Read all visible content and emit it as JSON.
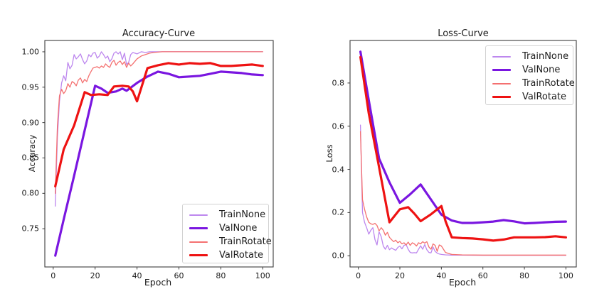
{
  "figure": {
    "background": "#ffffff",
    "spine_color": "#3c3c3c",
    "text_color": "#1c1c1c"
  },
  "chart_data": [
    {
      "type": "line",
      "title": "Accuracy-Curve",
      "xlabel": "Epoch",
      "ylabel": "Accuracy",
      "xlim": [
        -4,
        105
      ],
      "ylim": [
        0.696,
        1.016
      ],
      "grid": false,
      "legend_position": "lower right",
      "xticks": [
        0,
        20,
        40,
        60,
        80,
        100
      ],
      "xtick_labels": [
        "0",
        "20",
        "40",
        "60",
        "80",
        "100"
      ],
      "yticks": [
        0.75,
        0.8,
        0.85,
        0.9,
        0.95,
        1.0
      ],
      "ytick_labels": [
        "0.75",
        "0.80",
        "0.85",
        "0.90",
        "0.95",
        "1.00"
      ],
      "series": [
        {
          "name": "TrainNone",
          "color": "#bd87ee",
          "linewidth": 1.3,
          "x": [
            1,
            2,
            3,
            4,
            5,
            6,
            7,
            8,
            9,
            10,
            11,
            12,
            13,
            14,
            15,
            16,
            17,
            18,
            19,
            20,
            21,
            22,
            23,
            24,
            25,
            26,
            27,
            28,
            29,
            30,
            31,
            32,
            33,
            34,
            35,
            36,
            37,
            38,
            40,
            42,
            44,
            46,
            50,
            60,
            70,
            80,
            90,
            100
          ],
          "y": [
            0.782,
            0.88,
            0.93,
            0.956,
            0.966,
            0.959,
            0.985,
            0.976,
            0.981,
            0.996,
            0.99,
            0.993,
            0.997,
            0.989,
            0.983,
            0.987,
            0.996,
            0.993,
            0.998,
            0.999,
            0.991,
            0.994,
            1.0,
            0.996,
            0.991,
            0.994,
            0.986,
            0.99,
            0.998,
            1.0,
            0.997,
            1.0,
            0.989,
            0.998,
            0.982,
            0.985,
            0.996,
            0.999,
            0.997,
            1.0,
            0.999,
            1.0,
            1.0,
            1.0,
            1.0,
            1.0,
            1.0,
            1.0
          ]
        },
        {
          "name": "ValNone",
          "color": "#7a16e0",
          "linewidth": 3.2,
          "x": [
            1,
            5,
            10,
            15,
            20,
            23,
            26,
            30,
            33,
            35,
            40,
            45,
            50,
            55,
            60,
            65,
            70,
            75,
            80,
            85,
            90,
            95,
            100
          ],
          "y": [
            0.712,
            0.763,
            0.825,
            0.889,
            0.952,
            0.948,
            0.942,
            0.944,
            0.948,
            0.945,
            0.956,
            0.965,
            0.972,
            0.969,
            0.964,
            0.965,
            0.966,
            0.969,
            0.972,
            0.971,
            0.97,
            0.968,
            0.967
          ]
        },
        {
          "name": "TrainRotate",
          "color": "#f47070",
          "linewidth": 1.3,
          "x": [
            1,
            2,
            3,
            4,
            5,
            6,
            7,
            8,
            9,
            10,
            11,
            12,
            13,
            14,
            15,
            16,
            17,
            18,
            19,
            20,
            21,
            22,
            23,
            24,
            25,
            26,
            27,
            28,
            29,
            30,
            31,
            32,
            33,
            34,
            35,
            36,
            37,
            38,
            40,
            42,
            44,
            46,
            48,
            52,
            60,
            70,
            80,
            90,
            100
          ],
          "y": [
            0.8,
            0.895,
            0.938,
            0.947,
            0.941,
            0.945,
            0.955,
            0.95,
            0.958,
            0.956,
            0.952,
            0.96,
            0.963,
            0.956,
            0.961,
            0.958,
            0.966,
            0.972,
            0.977,
            0.978,
            0.979,
            0.977,
            0.98,
            0.978,
            0.983,
            0.98,
            0.978,
            0.985,
            0.988,
            0.981,
            0.985,
            0.987,
            0.982,
            0.986,
            0.978,
            0.984,
            0.98,
            0.983,
            0.99,
            0.994,
            0.996,
            0.998,
            0.999,
            1.0,
            1.0,
            1.0,
            1.0,
            1.0,
            1.0
          ]
        },
        {
          "name": "ValRotate",
          "color": "#ee1212",
          "linewidth": 3.2,
          "x": [
            1,
            5,
            10,
            15,
            18,
            22,
            26,
            29,
            33,
            36,
            38,
            40,
            45,
            50,
            55,
            60,
            65,
            70,
            75,
            80,
            85,
            90,
            95,
            100
          ],
          "y": [
            0.81,
            0.862,
            0.896,
            0.943,
            0.939,
            0.94,
            0.939,
            0.951,
            0.952,
            0.951,
            0.944,
            0.93,
            0.977,
            0.981,
            0.984,
            0.982,
            0.984,
            0.983,
            0.984,
            0.98,
            0.98,
            0.981,
            0.982,
            0.98
          ]
        }
      ]
    },
    {
      "type": "line",
      "title": "Loss-Curve",
      "xlabel": "Epoch",
      "ylabel": "Loss",
      "xlim": [
        -4,
        105
      ],
      "ylim": [
        -0.052,
        0.997
      ],
      "grid": false,
      "legend_position": "upper right",
      "xticks": [
        0,
        20,
        40,
        60,
        80,
        100
      ],
      "xtick_labels": [
        "0",
        "20",
        "40",
        "60",
        "80",
        "100"
      ],
      "yticks": [
        0.0,
        0.2,
        0.4,
        0.6,
        0.8
      ],
      "ytick_labels": [
        "0.0",
        "0.2",
        "0.4",
        "0.6",
        "0.8"
      ],
      "series": [
        {
          "name": "TrainNone",
          "color": "#bd87ee",
          "linewidth": 1.3,
          "x": [
            1,
            2,
            3,
            4,
            5,
            6,
            7,
            8,
            9,
            10,
            11,
            12,
            13,
            14,
            15,
            16,
            17,
            18,
            19,
            20,
            21,
            22,
            23,
            24,
            25,
            26,
            27,
            28,
            29,
            30,
            31,
            32,
            33,
            34,
            35,
            36,
            37,
            38,
            39,
            40,
            42,
            45,
            50,
            60,
            70,
            80,
            90,
            100
          ],
          "y": [
            0.605,
            0.2,
            0.155,
            0.13,
            0.1,
            0.118,
            0.13,
            0.075,
            0.05,
            0.11,
            0.088,
            0.045,
            0.03,
            0.048,
            0.028,
            0.036,
            0.03,
            0.025,
            0.038,
            0.045,
            0.032,
            0.048,
            0.052,
            0.03,
            0.015,
            0.013,
            0.014,
            0.013,
            0.03,
            0.046,
            0.03,
            0.052,
            0.028,
            0.015,
            0.013,
            0.04,
            0.02,
            0.012,
            0.008,
            0.006,
            0.004,
            0.003,
            0.003,
            0.002,
            0.002,
            0.002,
            0.002,
            0.002
          ]
        },
        {
          "name": "ValNone",
          "color": "#7a16e0",
          "linewidth": 3.2,
          "x": [
            1,
            5,
            10,
            15,
            20,
            25,
            30,
            35,
            40,
            45,
            50,
            55,
            60,
            65,
            70,
            75,
            80,
            85,
            90,
            95,
            100
          ],
          "y": [
            0.945,
            0.72,
            0.45,
            0.34,
            0.245,
            0.285,
            0.33,
            0.26,
            0.19,
            0.163,
            0.152,
            0.152,
            0.155,
            0.158,
            0.165,
            0.159,
            0.15,
            0.152,
            0.155,
            0.157,
            0.158
          ]
        },
        {
          "name": "TrainRotate",
          "color": "#f47070",
          "linewidth": 1.3,
          "x": [
            1,
            2,
            3,
            4,
            5,
            6,
            7,
            8,
            9,
            10,
            11,
            12,
            13,
            14,
            15,
            16,
            17,
            18,
            19,
            20,
            21,
            22,
            23,
            24,
            25,
            26,
            27,
            28,
            29,
            30,
            31,
            32,
            33,
            34,
            35,
            36,
            37,
            38,
            39,
            40,
            42,
            45,
            50,
            60,
            70,
            80,
            90,
            100
          ],
          "y": [
            0.575,
            0.26,
            0.215,
            0.18,
            0.155,
            0.148,
            0.145,
            0.15,
            0.14,
            0.115,
            0.13,
            0.118,
            0.095,
            0.108,
            0.085,
            0.075,
            0.065,
            0.072,
            0.06,
            0.066,
            0.055,
            0.06,
            0.05,
            0.063,
            0.048,
            0.06,
            0.055,
            0.045,
            0.06,
            0.055,
            0.065,
            0.058,
            0.065,
            0.04,
            0.03,
            0.055,
            0.048,
            0.02,
            0.05,
            0.045,
            0.015,
            0.006,
            0.004,
            0.003,
            0.003,
            0.003,
            0.003,
            0.003
          ]
        },
        {
          "name": "ValRotate",
          "color": "#ee1212",
          "linewidth": 3.2,
          "x": [
            1,
            5,
            10,
            15,
            20,
            24,
            27,
            30,
            35,
            40,
            42,
            45,
            50,
            55,
            60,
            65,
            70,
            75,
            80,
            85,
            90,
            95,
            100
          ],
          "y": [
            0.92,
            0.66,
            0.41,
            0.155,
            0.215,
            0.225,
            0.195,
            0.16,
            0.192,
            0.23,
            0.16,
            0.085,
            0.082,
            0.08,
            0.076,
            0.07,
            0.075,
            0.085,
            0.085,
            0.085,
            0.086,
            0.09,
            0.085
          ]
        }
      ]
    }
  ]
}
